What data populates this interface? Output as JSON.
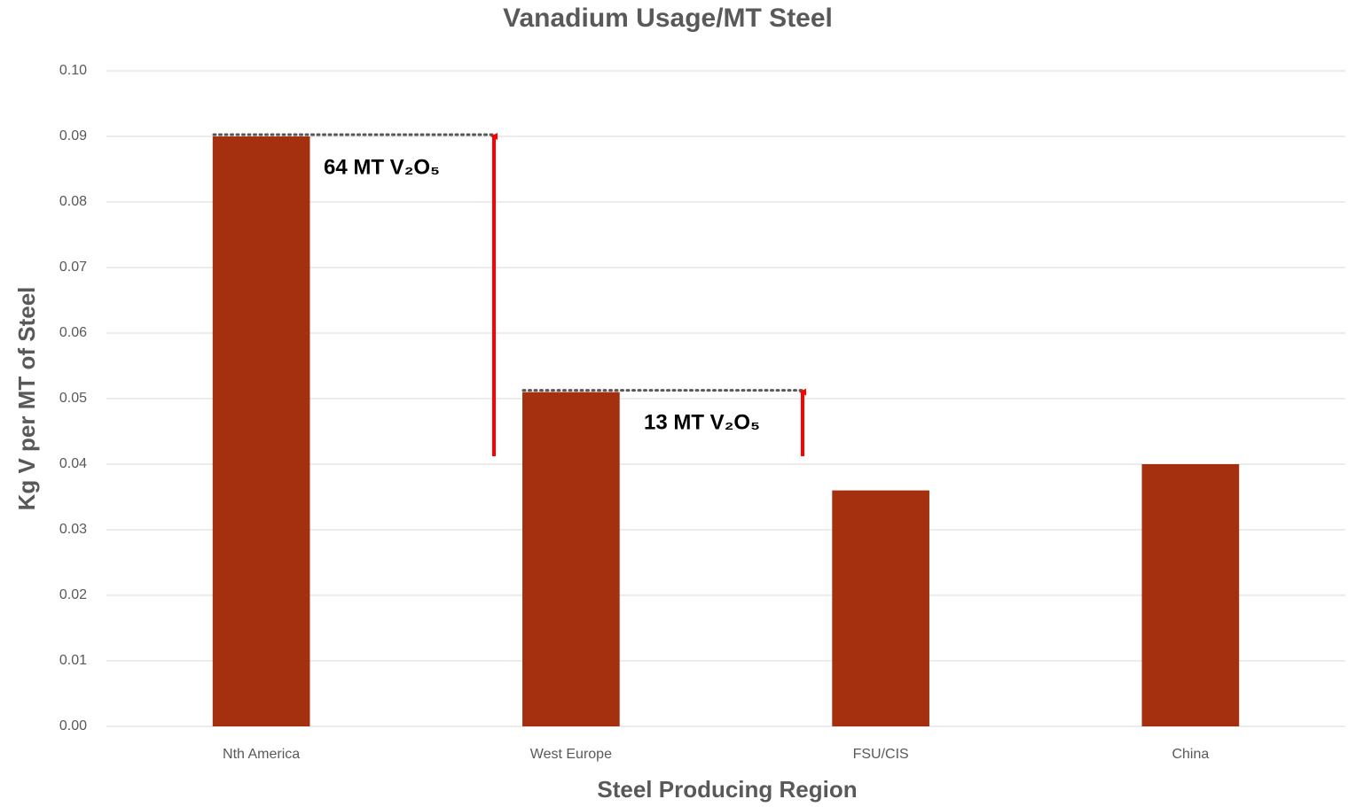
{
  "chart_data": {
    "type": "bar",
    "title": "Vanadium Usage/MT Steel",
    "x_label": "Steel Producing Region",
    "y_label": "Kg V per MT of Steel",
    "categories": [
      "Nth America",
      "West Europe",
      "FSU/CIS",
      "China"
    ],
    "values": [
      0.09,
      0.051,
      0.036,
      0.04
    ],
    "color": "#a5300f",
    "ylim": [
      0,
      0.1
    ],
    "yticks": [
      {
        "value": 0,
        "label": "0.00"
      },
      0.01,
      0.02,
      0.03,
      0.04,
      0.05,
      0.06,
      0.07,
      0.08,
      0.09,
      {
        "value": 0.1,
        "label": "0.10"
      }
    ],
    "grid": true,
    "annotations": [
      "64 MT V₂O₅",
      "13 MT V₂O₅"
    ]
  }
}
